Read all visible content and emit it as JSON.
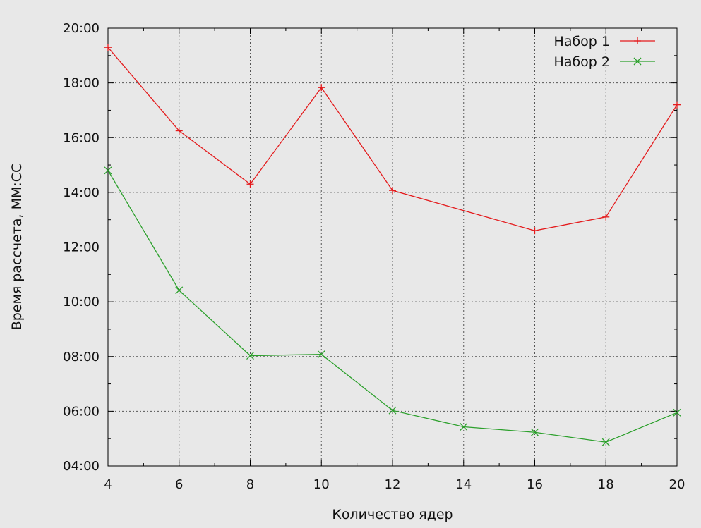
{
  "chart_data": {
    "type": "line",
    "title": "",
    "xlabel": "Количество ядер",
    "ylabel": "Время рассчета, ММ:СС",
    "xlim": [
      4,
      20
    ],
    "ylim": [
      4,
      20
    ],
    "x_ticks": [
      4,
      6,
      8,
      10,
      12,
      14,
      16,
      18,
      20
    ],
    "x_tick_labels": [
      "4",
      "6",
      "8",
      "10",
      "12",
      "14",
      "16",
      "18",
      "20"
    ],
    "y_ticks": [
      4,
      6,
      8,
      10,
      12,
      14,
      16,
      18,
      20
    ],
    "y_tick_labels": [
      "04:00",
      "06:00",
      "08:00",
      "10:00",
      "12:00",
      "14:00",
      "16:00",
      "18:00",
      "20:00"
    ],
    "grid": true,
    "legend_position": "top-right",
    "series": [
      {
        "name": "Набор 1",
        "color": "#e41a1c",
        "marker": "plus",
        "x": [
          4,
          6,
          8,
          10,
          12,
          16,
          18,
          20
        ],
        "values": [
          19.3,
          16.25,
          14.3,
          17.83,
          14.07,
          12.6,
          13.1,
          17.2
        ]
      },
      {
        "name": "Набор 2",
        "color": "#2ca02c",
        "marker": "cross",
        "x": [
          4,
          6,
          8,
          10,
          12,
          14,
          16,
          18,
          20
        ],
        "values": [
          14.8,
          10.42,
          8.03,
          8.08,
          6.03,
          5.43,
          5.23,
          4.87,
          5.95
        ]
      }
    ]
  }
}
